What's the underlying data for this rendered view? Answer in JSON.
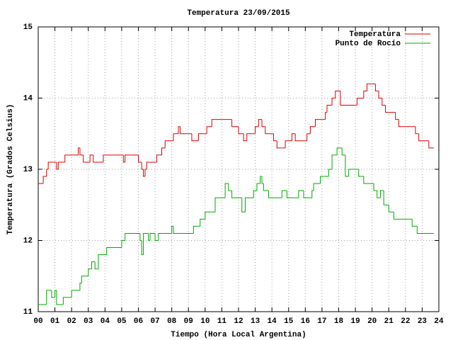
{
  "chart_data": {
    "type": "line",
    "title": "Temperatura 23/09/2015",
    "xlabel": "Tiempo (Hora Local Argentina)",
    "ylabel": "Temperatura (Grados Celsius)",
    "xlim": [
      0,
      24
    ],
    "ylim": [
      11,
      15
    ],
    "xticks": [
      {
        "value": 0,
        "label": "00"
      },
      {
        "value": 1,
        "label": "01"
      },
      {
        "value": 2,
        "label": "02"
      },
      {
        "value": 3,
        "label": "03"
      },
      {
        "value": 4,
        "label": "04"
      },
      {
        "value": 5,
        "label": "05"
      },
      {
        "value": 6,
        "label": "06"
      },
      {
        "value": 7,
        "label": "07"
      },
      {
        "value": 8,
        "label": "08"
      },
      {
        "value": 9,
        "label": "09"
      },
      10,
      11,
      12,
      13,
      14,
      15,
      16,
      17,
      18,
      19,
      20,
      21,
      22,
      23,
      24
    ],
    "yticks": [
      11,
      12,
      13,
      14,
      15
    ],
    "grid": true,
    "legend": "top-right",
    "series": [
      {
        "name": "Temperatura",
        "color": "#dd0000",
        "x": [
          0.0,
          0.3,
          0.5,
          0.6,
          1.1,
          1.2,
          1.6,
          2.4,
          2.5,
          2.7,
          3.1,
          3.3,
          3.9,
          5.1,
          5.2,
          6.0,
          6.2,
          6.3,
          6.4,
          6.5,
          7.1,
          7.4,
          7.6,
          8.1,
          8.4,
          8.5,
          9.2,
          9.6,
          10.1,
          10.4,
          11.6,
          12.0,
          12.3,
          12.5,
          13.0,
          13.2,
          13.4,
          13.6,
          14.1,
          14.3,
          14.8,
          15.2,
          15.4,
          16.1,
          16.3,
          16.6,
          17.2,
          17.3,
          17.6,
          17.8,
          18.1,
          19.1,
          19.5,
          19.7,
          20.2,
          20.4,
          20.6,
          20.8,
          21.4,
          21.6,
          22.6,
          22.8,
          23.4,
          23.7
        ],
        "values": [
          12.8,
          12.9,
          13.0,
          13.1,
          13.0,
          13.1,
          13.2,
          13.3,
          13.2,
          13.1,
          13.2,
          13.1,
          13.2,
          13.1,
          13.2,
          13.1,
          13.0,
          12.9,
          13.0,
          13.1,
          13.2,
          13.3,
          13.4,
          13.5,
          13.6,
          13.5,
          13.4,
          13.5,
          13.6,
          13.7,
          13.6,
          13.5,
          13.4,
          13.5,
          13.6,
          13.7,
          13.6,
          13.5,
          13.4,
          13.3,
          13.4,
          13.5,
          13.4,
          13.5,
          13.6,
          13.7,
          13.8,
          13.9,
          14.0,
          14.1,
          13.9,
          14.0,
          14.1,
          14.2,
          14.1,
          14.0,
          13.9,
          13.8,
          13.7,
          13.6,
          13.5,
          13.4,
          13.3,
          13.3
        ]
      },
      {
        "name": "Punto de Rocío",
        "color": "#00aa00",
        "x": [
          0.0,
          0.5,
          0.8,
          1.0,
          1.1,
          1.5,
          2.0,
          2.5,
          2.6,
          3.0,
          3.2,
          3.4,
          3.6,
          4.1,
          5.0,
          5.2,
          6.1,
          6.2,
          6.3,
          6.6,
          6.7,
          7.0,
          7.2,
          8.0,
          8.1,
          9.3,
          9.7,
          10.0,
          10.6,
          11.2,
          11.4,
          11.6,
          12.2,
          12.4,
          12.9,
          13.1,
          13.3,
          13.4,
          13.5,
          13.8,
          14.6,
          14.9,
          15.6,
          15.9,
          16.4,
          16.5,
          16.9,
          17.4,
          17.6,
          17.9,
          18.2,
          18.4,
          18.6,
          19.2,
          19.5,
          20.1,
          20.3,
          20.5,
          20.7,
          21.0,
          21.3,
          22.4,
          22.7,
          23.7
        ],
        "values": [
          11.1,
          11.3,
          11.2,
          11.3,
          11.1,
          11.2,
          11.3,
          11.4,
          11.5,
          11.6,
          11.7,
          11.6,
          11.8,
          11.9,
          12.0,
          12.1,
          12.0,
          11.8,
          12.1,
          12.0,
          12.1,
          12.0,
          12.1,
          12.2,
          12.1,
          12.2,
          12.3,
          12.4,
          12.6,
          12.8,
          12.7,
          12.6,
          12.4,
          12.6,
          12.7,
          12.8,
          12.9,
          12.8,
          12.7,
          12.6,
          12.7,
          12.6,
          12.7,
          12.6,
          12.7,
          12.8,
          12.9,
          13.0,
          13.2,
          13.3,
          13.2,
          12.9,
          13.0,
          12.9,
          12.8,
          12.7,
          12.6,
          12.7,
          12.5,
          12.4,
          12.3,
          12.2,
          12.1,
          12.1
        ]
      }
    ]
  }
}
